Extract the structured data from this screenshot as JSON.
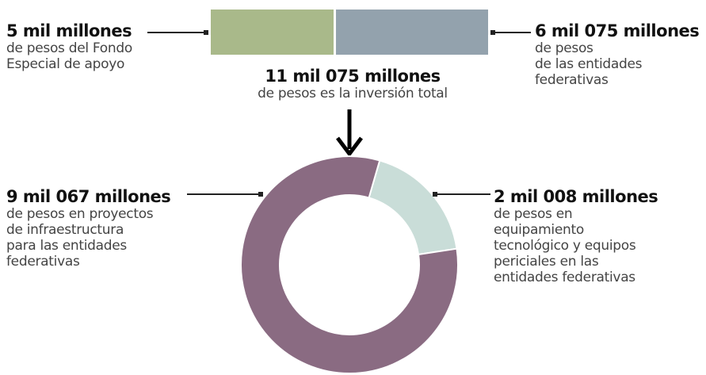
{
  "chart_data": [
    {
      "type": "bar",
      "orientation": "horizontal-stacked",
      "categories": [
        "total"
      ],
      "series": [
        {
          "value": 5000,
          "color": "#a9b98a"
        },
        {
          "value": 6075,
          "color": "#93a2ad"
        }
      ]
    },
    {
      "type": "pie",
      "style": "donut",
      "slices": [
        {
          "value": 9067,
          "color": "#8a6b82"
        },
        {
          "value": 2008,
          "color": "#c9ddd8"
        }
      ]
    }
  ],
  "labels": {
    "fondo": {
      "title": "5 mil millones",
      "lines": [
        "de pesos del Fondo",
        "Especial de apoyo"
      ]
    },
    "entidades": {
      "title": "6 mil 075 millones",
      "lines": [
        "de pesos",
        "de las entidades",
        "federativas"
      ]
    },
    "total": {
      "title": "11 mil 075 millones",
      "lines": [
        "de pesos es la inversión total"
      ]
    },
    "infra": {
      "title": "9 mil 067 millones",
      "lines": [
        "de pesos en proyectos",
        "de infraestructura",
        "para las entidades",
        "federativas"
      ]
    },
    "equip": {
      "title": "2 mil 008 millones",
      "lines": [
        "de pesos en",
        "equipamiento",
        "tecnológico y equipos",
        "periciales en las",
        "entidades federativas"
      ]
    }
  }
}
